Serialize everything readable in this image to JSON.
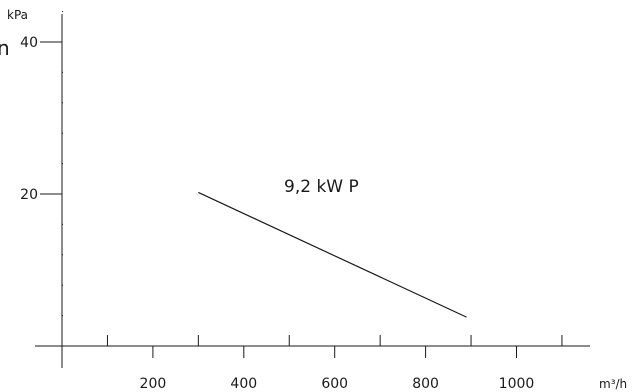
{
  "chart_data": {
    "type": "line",
    "title": "",
    "xlabel": "",
    "ylabel": "",
    "x_unit": "m³/h",
    "y_unit": "kPa",
    "xlim": [
      0,
      1170
    ],
    "ylim": [
      0,
      50
    ],
    "x_major_ticks": [
      200,
      400,
      600,
      800,
      1000
    ],
    "x_minor_step": 100,
    "y_major_ticks": [
      20,
      40
    ],
    "y_minor_step": 4,
    "grid": false,
    "series": [
      {
        "name": "9,2 kW P",
        "x": [
          300,
          890
        ],
        "y": [
          20.2,
          3.8
        ]
      }
    ],
    "clipped_text": "n"
  }
}
